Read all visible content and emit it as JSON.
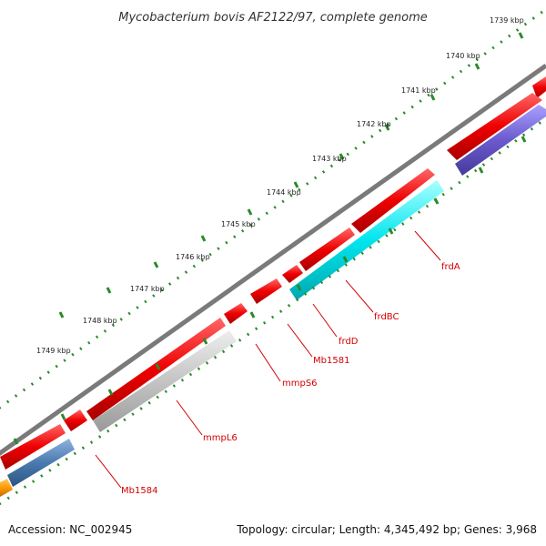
{
  "title": "Mycobacterium bovis AF2122/97, complete genome",
  "footer": {
    "accession": "Accession: NC_002945",
    "stats": "Topology: circular; Length: 4,345,492 bp; Genes: 3,968"
  },
  "scale_labels": [
    "1739 kbp",
    "1740 kbp",
    "1741 kbp",
    "1742 kbp",
    "1743 kbp",
    "1744 kbp",
    "1745 kbp",
    "1746 kbp",
    "1747 kbp",
    "1748 kbp",
    "1749 kbp"
  ],
  "gene_labels": [
    "frdA",
    "frdBC",
    "frdD",
    "Mb1581",
    "mmpS6",
    "mmpL6",
    "Mb1584"
  ],
  "colors": {
    "backbone": "#7a7a7a",
    "forward_cds": "#ee0000",
    "frd_cds": "#00e5ee",
    "mmpL6_cds": "#c0c0c0",
    "Mb1584_cds": "#4a7ab0",
    "right_cds": "#6a5acd",
    "left_cds": "#ff9900",
    "tick": "#2a8a2a",
    "label": "#d40000"
  }
}
